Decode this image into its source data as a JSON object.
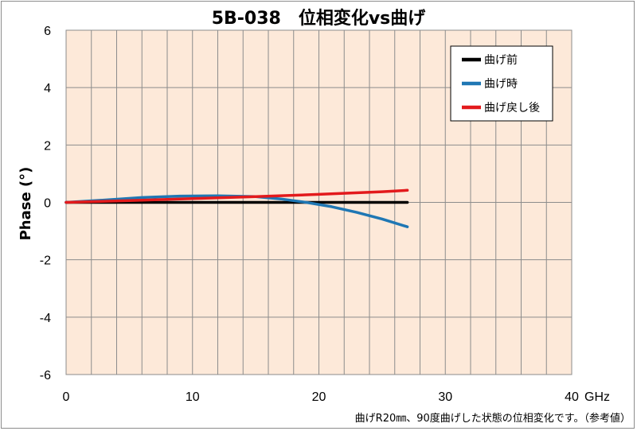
{
  "chart_data": {
    "type": "line",
    "title": "5B-038　位相変化vs曲げ",
    "xlabel": "GHz",
    "ylabel": "Phase (°)",
    "xlim": [
      0,
      40
    ],
    "ylim": [
      -6,
      6
    ],
    "x_ticks": [
      0,
      10,
      20,
      30,
      40
    ],
    "y_ticks": [
      6,
      4,
      2,
      0,
      -2,
      -4,
      -6
    ],
    "grid": true,
    "legend_position": "top-right",
    "plot_background": "#FDE9D9",
    "series": [
      {
        "name": "曲げ前",
        "color": "#000000",
        "x": [
          0,
          5,
          10,
          15,
          20,
          25,
          27
        ],
        "y": [
          0,
          0,
          0,
          0,
          0,
          0,
          0
        ]
      },
      {
        "name": "曲げ時",
        "color": "#1F77B4",
        "x": [
          0,
          3,
          6,
          9,
          12,
          15,
          17,
          19,
          21,
          23,
          25,
          27
        ],
        "y": [
          0,
          0.08,
          0.17,
          0.22,
          0.23,
          0.2,
          0.12,
          0.0,
          -0.15,
          -0.35,
          -0.58,
          -0.85
        ]
      },
      {
        "name": "曲げ戻し後",
        "color": "#E31A1C",
        "x": [
          0,
          5,
          10,
          15,
          20,
          25,
          27
        ],
        "y": [
          0,
          0.06,
          0.13,
          0.2,
          0.28,
          0.37,
          0.42
        ]
      }
    ],
    "note": "曲げR20㎜、90度曲げした状態の位相変化です。（参考値）"
  }
}
